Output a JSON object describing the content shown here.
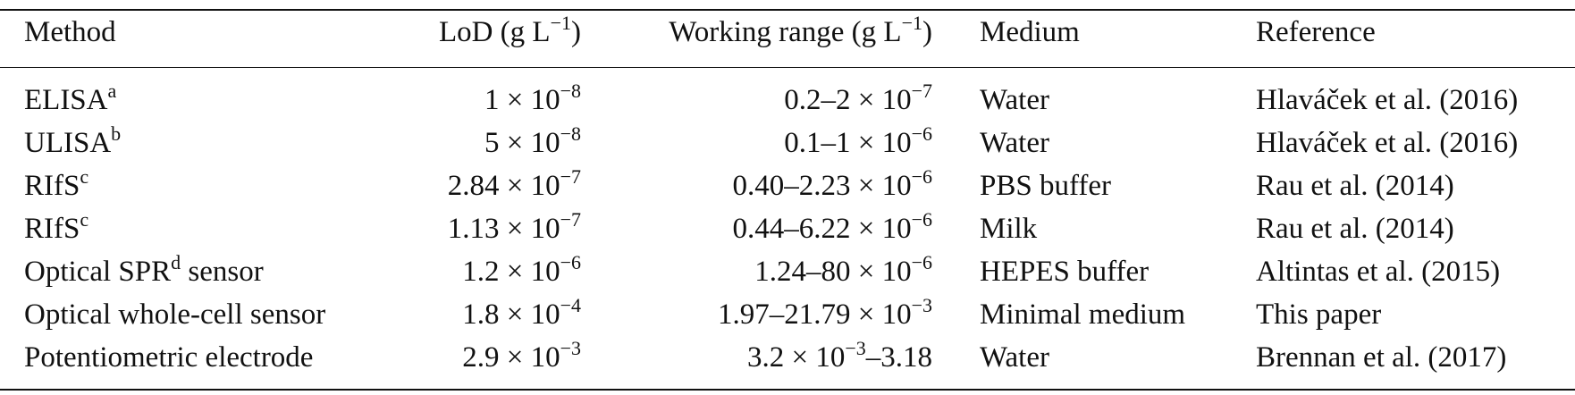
{
  "table": {
    "header": [
      {
        "text": "Method"
      },
      {
        "text": "LoD (g L",
        "sup": "−1",
        "after": ")"
      },
      {
        "text": "Working range (g L",
        "sup": "−1",
        "after": ")"
      },
      {
        "text": "Medium"
      },
      {
        "text": "Reference"
      }
    ],
    "rows": [
      [
        {
          "text": "ELISA",
          "sup": "a"
        },
        {
          "text": "1 × 10",
          "sup": "−8"
        },
        {
          "text": "0.2–2 × 10",
          "sup": "−7"
        },
        {
          "text": "Water"
        },
        {
          "text": "Hlaváček et al. (2016)"
        }
      ],
      [
        {
          "text": "ULISA",
          "sup": "b"
        },
        {
          "text": "5 × 10",
          "sup": "−8"
        },
        {
          "text": "0.1–1 × 10",
          "sup": "−6"
        },
        {
          "text": "Water"
        },
        {
          "text": "Hlaváček et al. (2016)"
        }
      ],
      [
        {
          "text": "RIfS",
          "sup": "c"
        },
        {
          "text": "2.84 × 10",
          "sup": "−7"
        },
        {
          "text": "0.40–2.23 × 10",
          "sup": "−6"
        },
        {
          "text": "PBS buffer"
        },
        {
          "text": "Rau et al. (2014)"
        }
      ],
      [
        {
          "text": "RIfS",
          "sup": "c"
        },
        {
          "text": "1.13 × 10",
          "sup": "−7"
        },
        {
          "text": "0.44–6.22 × 10",
          "sup": "−6"
        },
        {
          "text": "Milk"
        },
        {
          "text": "Rau et al. (2014)"
        }
      ],
      [
        {
          "text": "Optical SPR",
          "sup": "d",
          "after": " sensor"
        },
        {
          "text": "1.2 × 10",
          "sup": "−6"
        },
        {
          "text": "1.24–80 × 10",
          "sup": "−6"
        },
        {
          "text": "HEPES buffer"
        },
        {
          "text": "Altintas et al. (2015)"
        }
      ],
      [
        {
          "text": "Optical whole-cell sensor"
        },
        {
          "text": "1.8 × 10",
          "sup": "−4"
        },
        {
          "text": "1.97–21.79 × 10",
          "sup": "−3"
        },
        {
          "text": "Minimal medium"
        },
        {
          "text": "This paper"
        }
      ],
      [
        {
          "text": "Potentiometric electrode"
        },
        {
          "text": "2.9 × 10",
          "sup": "−3"
        },
        {
          "text": "3.2 × 10",
          "sup": "−3",
          "after": "–3.18"
        },
        {
          "text": "Water"
        },
        {
          "text": "Brennan et al. (2017)"
        }
      ]
    ]
  }
}
